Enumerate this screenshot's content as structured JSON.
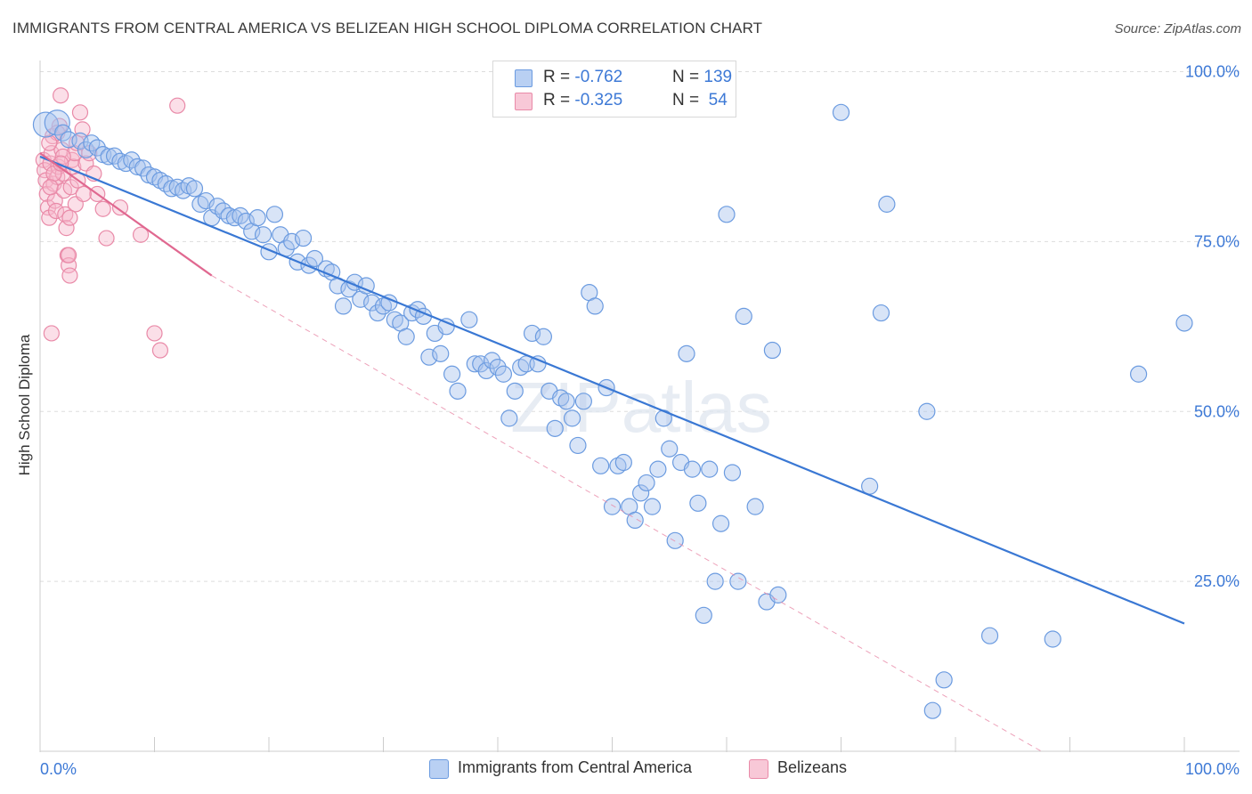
{
  "title": "IMMIGRANTS FROM CENTRAL AMERICA VS BELIZEAN HIGH SCHOOL DIPLOMA CORRELATION CHART",
  "source": "Source: ZipAtlas.com",
  "watermark": "ZIPatlas",
  "colors": {
    "blue_fill": "#a9c4ee",
    "blue_stroke": "#6b9be0",
    "blue_line": "#3a78d4",
    "pink_fill": "#f6b8cb",
    "pink_stroke": "#e98aa8",
    "pink_line": "#e06890",
    "axis_text": "#3d79d6",
    "grid": "#dddddd"
  },
  "legend_top": {
    "rows": [
      {
        "r_label": "R = ",
        "r_value": "-0.762",
        "n_label": "N = ",
        "n_value": "139",
        "color": "blue"
      },
      {
        "r_label": "R = ",
        "r_value": "-0.325",
        "n_label": "N = ",
        "n_value": " 54",
        "color": "pink"
      }
    ]
  },
  "legend_bottom": [
    {
      "label": "Immigrants from Central America",
      "color": "blue"
    },
    {
      "label": "Belizeans",
      "color": "pink"
    }
  ],
  "chart_data": {
    "type": "scatter",
    "title": "IMMIGRANTS FROM CENTRAL AMERICA VS BELIZEAN HIGH SCHOOL DIPLOMA CORRELATION CHART",
    "xlabel": "",
    "ylabel": "High School Diploma",
    "xlim": [
      0,
      100
    ],
    "ylim": [
      0,
      102
    ],
    "x_tick_labels": [
      {
        "value": 0,
        "label": "0.0%"
      },
      {
        "value": 100,
        "label": "100.0%"
      }
    ],
    "y_tick_labels": [
      {
        "value": 100,
        "label": "100.0%"
      },
      {
        "value": 75,
        "label": "75.0%"
      },
      {
        "value": 50,
        "label": "50.0%"
      },
      {
        "value": 25,
        "label": "25.0%"
      }
    ],
    "y_gridlines": [
      100,
      75,
      50,
      25
    ],
    "series": [
      {
        "name": "Immigrants from Central America",
        "color": "blue",
        "r": -0.762,
        "n": 139,
        "trend": {
          "x0": 0,
          "y0": 87.5,
          "x1": 100,
          "y1": 18.8
        },
        "points": [
          [
            0.5,
            92.2
          ],
          [
            1.5,
            92.5
          ],
          [
            2.0,
            91.0
          ],
          [
            2.5,
            90.0
          ],
          [
            3.5,
            89.8
          ],
          [
            4.0,
            88.5
          ],
          [
            4.5,
            89.5
          ],
          [
            5.0,
            88.8
          ],
          [
            5.5,
            87.8
          ],
          [
            6.0,
            87.5
          ],
          [
            6.5,
            87.6
          ],
          [
            7.0,
            86.8
          ],
          [
            7.5,
            86.5
          ],
          [
            8.0,
            87.0
          ],
          [
            8.5,
            86.0
          ],
          [
            9.0,
            85.8
          ],
          [
            9.5,
            84.8
          ],
          [
            10.0,
            84.5
          ],
          [
            10.5,
            84.0
          ],
          [
            11.0,
            83.5
          ],
          [
            11.5,
            82.8
          ],
          [
            12.0,
            83.0
          ],
          [
            12.5,
            82.5
          ],
          [
            13.0,
            83.2
          ],
          [
            13.5,
            82.8
          ],
          [
            14.0,
            80.5
          ],
          [
            14.5,
            81.0
          ],
          [
            15.0,
            78.5
          ],
          [
            15.5,
            80.2
          ],
          [
            16.0,
            79.5
          ],
          [
            16.5,
            78.8
          ],
          [
            17.0,
            78.5
          ],
          [
            17.5,
            78.8
          ],
          [
            18.0,
            78.0
          ],
          [
            18.5,
            76.5
          ],
          [
            19.0,
            78.5
          ],
          [
            19.5,
            76.0
          ],
          [
            20.0,
            73.5
          ],
          [
            20.5,
            79.0
          ],
          [
            21.0,
            76.0
          ],
          [
            21.5,
            74.0
          ],
          [
            22.0,
            75.0
          ],
          [
            22.5,
            72.0
          ],
          [
            23.0,
            75.5
          ],
          [
            23.5,
            71.5
          ],
          [
            24.0,
            72.5
          ],
          [
            25.0,
            71.0
          ],
          [
            25.5,
            70.5
          ],
          [
            26.0,
            68.5
          ],
          [
            26.5,
            65.5
          ],
          [
            27.0,
            68.0
          ],
          [
            27.5,
            69.0
          ],
          [
            28.0,
            66.5
          ],
          [
            28.5,
            68.5
          ],
          [
            29.0,
            66.0
          ],
          [
            29.5,
            64.5
          ],
          [
            30.0,
            65.5
          ],
          [
            30.5,
            66.0
          ],
          [
            31.0,
            63.5
          ],
          [
            31.5,
            63.0
          ],
          [
            32.0,
            61.0
          ],
          [
            32.5,
            64.5
          ],
          [
            33.0,
            65.0
          ],
          [
            33.5,
            64.0
          ],
          [
            34.0,
            58.0
          ],
          [
            34.5,
            61.5
          ],
          [
            35.0,
            58.5
          ],
          [
            35.5,
            62.5
          ],
          [
            36.0,
            55.5
          ],
          [
            36.5,
            53.0
          ],
          [
            37.5,
            63.5
          ],
          [
            38.0,
            57.0
          ],
          [
            38.5,
            57.0
          ],
          [
            39.0,
            56.0
          ],
          [
            39.5,
            57.5
          ],
          [
            40.0,
            56.5
          ],
          [
            40.5,
            55.5
          ],
          [
            41.0,
            49.0
          ],
          [
            41.5,
            53.0
          ],
          [
            42.0,
            56.5
          ],
          [
            42.5,
            57.0
          ],
          [
            43.0,
            61.5
          ],
          [
            43.5,
            57.0
          ],
          [
            44.0,
            61.0
          ],
          [
            44.5,
            53.0
          ],
          [
            45.0,
            47.5
          ],
          [
            45.5,
            52.0
          ],
          [
            46.0,
            51.5
          ],
          [
            46.5,
            49.0
          ],
          [
            47.0,
            45.0
          ],
          [
            47.5,
            51.5
          ],
          [
            48.0,
            67.5
          ],
          [
            48.5,
            65.5
          ],
          [
            49.0,
            42.0
          ],
          [
            49.5,
            53.5
          ],
          [
            50.0,
            36.0
          ],
          [
            50.5,
            42.0
          ],
          [
            51.0,
            42.5
          ],
          [
            51.5,
            36.0
          ],
          [
            52.0,
            34.0
          ],
          [
            52.5,
            38.0
          ],
          [
            53.0,
            39.5
          ],
          [
            53.5,
            36.0
          ],
          [
            54.0,
            41.5
          ],
          [
            54.5,
            49.0
          ],
          [
            55.0,
            44.5
          ],
          [
            55.5,
            31.0
          ],
          [
            56.0,
            42.5
          ],
          [
            56.5,
            58.5
          ],
          [
            57.0,
            41.5
          ],
          [
            57.5,
            36.5
          ],
          [
            58.0,
            20.0
          ],
          [
            58.5,
            41.5
          ],
          [
            59.0,
            25.0
          ],
          [
            59.5,
            33.5
          ],
          [
            60.0,
            79.0
          ],
          [
            60.5,
            41.0
          ],
          [
            61.0,
            25.0
          ],
          [
            61.5,
            64.0
          ],
          [
            62.5,
            36.0
          ],
          [
            63.5,
            22.0
          ],
          [
            64.0,
            59.0
          ],
          [
            64.5,
            23.0
          ],
          [
            70.0,
            94.0
          ],
          [
            72.5,
            39.0
          ],
          [
            73.5,
            64.5
          ],
          [
            74.0,
            80.5
          ],
          [
            77.5,
            50.0
          ],
          [
            78.0,
            6.0
          ],
          [
            79.0,
            10.5
          ],
          [
            83.0,
            17.0
          ],
          [
            88.5,
            16.5
          ],
          [
            96.0,
            55.5
          ],
          [
            100.0,
            63.0
          ]
        ]
      },
      {
        "name": "Belizeans",
        "color": "pink",
        "r": -0.325,
        "n": 54,
        "trend": {
          "x0": 0,
          "y0": 88.0,
          "x1": 15,
          "y1": 70.0
        },
        "trend_extended": {
          "x0": 15,
          "y0": 70.0,
          "x1": 100,
          "y1": -16.0
        },
        "points": [
          [
            0.3,
            87.0
          ],
          [
            0.4,
            85.5
          ],
          [
            0.5,
            84.0
          ],
          [
            0.6,
            82.0
          ],
          [
            0.7,
            80.0
          ],
          [
            0.8,
            78.5
          ],
          [
            0.9,
            86.5
          ],
          [
            1.0,
            88.0
          ],
          [
            1.1,
            90.5
          ],
          [
            1.2,
            83.5
          ],
          [
            1.3,
            81.0
          ],
          [
            1.4,
            79.5
          ],
          [
            1.5,
            84.5
          ],
          [
            1.6,
            86.0
          ],
          [
            1.7,
            92.0
          ],
          [
            1.8,
            96.5
          ],
          [
            1.9,
            88.5
          ],
          [
            2.0,
            85.0
          ],
          [
            2.1,
            82.5
          ],
          [
            2.2,
            79.0
          ],
          [
            2.3,
            77.0
          ],
          [
            2.4,
            73.0
          ],
          [
            2.5,
            71.5
          ],
          [
            2.6,
            70.0
          ],
          [
            2.7,
            83.0
          ],
          [
            2.8,
            87.0
          ],
          [
            2.9,
            86.0
          ],
          [
            3.0,
            88.0
          ],
          [
            3.1,
            80.5
          ],
          [
            3.2,
            89.5
          ],
          [
            3.3,
            84.0
          ],
          [
            3.5,
            94.0
          ],
          [
            3.7,
            91.5
          ],
          [
            4.0,
            86.5
          ],
          [
            4.3,
            88.0
          ],
          [
            4.7,
            85.0
          ],
          [
            5.0,
            82.0
          ],
          [
            5.5,
            79.8
          ],
          [
            5.8,
            75.5
          ],
          [
            7.0,
            80.0
          ],
          [
            8.8,
            76.0
          ],
          [
            10.0,
            61.5
          ],
          [
            10.5,
            59.0
          ],
          [
            12.0,
            95.0
          ],
          [
            1.0,
            61.5
          ],
          [
            2.5,
            73.0
          ],
          [
            1.5,
            91.0
          ],
          [
            0.8,
            89.5
          ],
          [
            2.0,
            87.5
          ],
          [
            1.2,
            85.0
          ],
          [
            3.8,
            82.0
          ],
          [
            2.6,
            78.5
          ],
          [
            1.8,
            86.5
          ],
          [
            0.9,
            83.0
          ]
        ]
      }
    ]
  }
}
